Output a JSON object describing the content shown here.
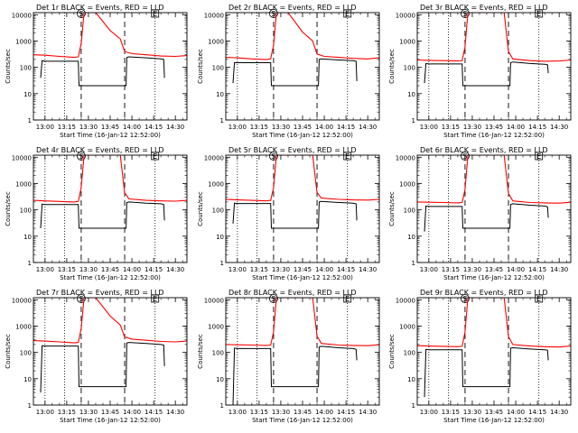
{
  "chart_data": {
    "type": "line",
    "layout": "3x3 grid",
    "shared": {
      "x_tick_labels": [
        "13:00",
        "13:15",
        "13:30",
        "13:45",
        "14:00",
        "14:15",
        "14:30"
      ],
      "x_ticks_minutes": [
        0,
        15,
        30,
        45,
        60,
        75,
        90
      ],
      "xlabel": "Start Time (16-Jan-12 12:52:00)",
      "ylabel": "Counts/sec",
      "y_tick_labels": [
        "1",
        "10",
        "100",
        "1000",
        "10000"
      ],
      "yscale": "log",
      "ylim": [
        1,
        12000
      ],
      "xlim_minutes": [
        -8,
        98
      ],
      "marker_S": "S",
      "marker_E": "E",
      "series_legend": "BLACK = Events, RED = LLD",
      "colors": {
        "events": "#000000",
        "lld": "#ff0000"
      }
    },
    "panels": [
      {
        "title": "Det 1r BLACK = Events, RED = LLD",
        "dotted_x": [
          0,
          13.5,
          76
        ],
        "dashed_x": [
          25,
          55
        ],
        "S_x": 25,
        "E_x": 76,
        "lld_x": [
          -8,
          0,
          10,
          20,
          23,
          25,
          27,
          35,
          45,
          52,
          55,
          60,
          70,
          80,
          90,
          98
        ],
        "lld_y": [
          300,
          290,
          260,
          240,
          250,
          800,
          12000,
          12000,
          2500,
          1200,
          400,
          330,
          300,
          270,
          260,
          280
        ],
        "events_x": [
          -3,
          -2,
          0,
          10,
          20,
          23,
          23.5,
          56,
          56.5,
          58,
          70,
          80,
          82,
          82.5
        ],
        "events_y": [
          40,
          180,
          170,
          170,
          170,
          170,
          20,
          20,
          240,
          250,
          230,
          210,
          200,
          40
        ]
      },
      {
        "title": "Det 2r BLACK = Events, RED = LLD",
        "dotted_x": [
          0,
          13.5,
          76
        ],
        "dashed_x": [
          25,
          55
        ],
        "S_x": 25,
        "E_x": 76,
        "lld_x": [
          -8,
          0,
          10,
          20,
          23,
          25,
          27,
          35,
          45,
          52,
          55,
          60,
          70,
          80,
          90,
          98
        ],
        "lld_y": [
          240,
          230,
          210,
          200,
          210,
          700,
          12000,
          12000,
          2200,
          1000,
          320,
          260,
          240,
          220,
          210,
          230
        ],
        "events_x": [
          -3,
          -2,
          0,
          10,
          20,
          23,
          23.5,
          56,
          56.5,
          58,
          70,
          80,
          82,
          82.5
        ],
        "events_y": [
          25,
          150,
          150,
          150,
          150,
          150,
          20,
          20,
          200,
          210,
          190,
          180,
          170,
          30
        ]
      },
      {
        "title": "Det 3r BLACK = Events, RED = LLD",
        "dotted_x": [
          0,
          13.5,
          76
        ],
        "dashed_x": [
          25,
          55
        ],
        "S_x": 25,
        "E_x": 76,
        "lld_x": [
          -8,
          0,
          10,
          20,
          23,
          25,
          27,
          45,
          52,
          55,
          58,
          70,
          80,
          90,
          98
        ],
        "lld_y": [
          190,
          185,
          180,
          175,
          180,
          600,
          12000,
          12000,
          12000,
          400,
          210,
          180,
          170,
          175,
          190
        ],
        "events_x": [
          -3,
          -2,
          0,
          10,
          20,
          23,
          23.5,
          56,
          56.5,
          58,
          70,
          80,
          82,
          82.5
        ],
        "events_y": [
          25,
          140,
          135,
          135,
          135,
          135,
          20,
          20,
          150,
          160,
          140,
          130,
          125,
          60
        ]
      },
      {
        "title": "Det 4r BLACK = Events, RED = LLD",
        "dotted_x": [
          0,
          13.5,
          76
        ],
        "dashed_x": [
          25,
          55
        ],
        "S_x": 25,
        "E_x": 76,
        "lld_x": [
          -8,
          0,
          10,
          20,
          23,
          25,
          27,
          45,
          52,
          55,
          58,
          70,
          80,
          90,
          98
        ],
        "lld_y": [
          230,
          220,
          210,
          200,
          210,
          700,
          12000,
          12000,
          12000,
          450,
          260,
          230,
          220,
          215,
          230
        ],
        "events_x": [
          -3,
          -2,
          0,
          10,
          20,
          23,
          23.5,
          56,
          56.5,
          58,
          70,
          80,
          82,
          82.5
        ],
        "events_y": [
          20,
          165,
          160,
          160,
          160,
          160,
          20,
          20,
          190,
          200,
          180,
          170,
          160,
          40
        ]
      },
      {
        "title": "Det 5r BLACK = Events, RED = LLD",
        "dotted_x": [
          0,
          13.5,
          76
        ],
        "dashed_x": [
          25,
          55
        ],
        "S_x": 25,
        "E_x": 76,
        "lld_x": [
          -8,
          0,
          10,
          20,
          23,
          25,
          27,
          45,
          52,
          55,
          58,
          70,
          80,
          90,
          98
        ],
        "lld_y": [
          250,
          240,
          230,
          220,
          230,
          700,
          12000,
          12000,
          12000,
          460,
          280,
          250,
          240,
          235,
          250
        ],
        "events_x": [
          -3,
          -2,
          0,
          10,
          20,
          23,
          23.5,
          56,
          56.5,
          58,
          70,
          80,
          82,
          82.5
        ],
        "events_y": [
          30,
          180,
          175,
          175,
          175,
          175,
          20,
          20,
          200,
          210,
          190,
          180,
          170,
          40
        ]
      },
      {
        "title": "Det 6r BLACK = Events, RED = LLD",
        "dotted_x": [
          0,
          13.5,
          76
        ],
        "dashed_x": [
          25,
          55
        ],
        "S_x": 25,
        "E_x": 76,
        "lld_x": [
          -8,
          0,
          10,
          20,
          23,
          25,
          27,
          45,
          52,
          55,
          58,
          70,
          80,
          90,
          98
        ],
        "lld_y": [
          200,
          195,
          190,
          185,
          190,
          600,
          12000,
          12000,
          12000,
          420,
          220,
          190,
          185,
          180,
          195
        ],
        "events_x": [
          -3,
          -2,
          0,
          10,
          20,
          23,
          23.5,
          56,
          56.5,
          58,
          70,
          80,
          82,
          82.5
        ],
        "events_y": [
          15,
          140,
          135,
          135,
          135,
          135,
          20,
          20,
          160,
          170,
          150,
          140,
          130,
          50
        ]
      },
      {
        "title": "Det 7r BLACK = Events, RED = LLD",
        "dotted_x": [
          0,
          13.5,
          76
        ],
        "dashed_x": [
          25,
          55
        ],
        "S_x": 25,
        "E_x": 76,
        "lld_x": [
          -8,
          0,
          10,
          20,
          23,
          25,
          27,
          35,
          45,
          52,
          55,
          60,
          70,
          80,
          90,
          98
        ],
        "lld_y": [
          280,
          270,
          250,
          230,
          240,
          800,
          12000,
          12000,
          2400,
          1100,
          380,
          320,
          290,
          260,
          250,
          270
        ],
        "events_x": [
          -3,
          -2,
          0,
          10,
          20,
          23,
          23.5,
          56,
          56.5,
          58,
          70,
          80,
          82,
          82.5
        ],
        "events_y": [
          3,
          180,
          175,
          175,
          175,
          175,
          5,
          5,
          230,
          240,
          220,
          200,
          190,
          30
        ]
      },
      {
        "title": "Det 8r BLACK = Events, RED = LLD",
        "dotted_x": [
          0,
          13.5,
          76
        ],
        "dashed_x": [
          25,
          55
        ],
        "S_x": 25,
        "E_x": 76,
        "lld_x": [
          -8,
          0,
          10,
          20,
          23,
          25,
          27,
          45,
          52,
          55,
          58,
          70,
          80,
          90,
          98
        ],
        "lld_y": [
          200,
          195,
          190,
          185,
          190,
          600,
          12000,
          12000,
          12000,
          420,
          220,
          190,
          185,
          180,
          195
        ],
        "events_x": [
          -3,
          -2,
          0,
          10,
          20,
          23,
          23.5,
          56,
          56.5,
          58,
          70,
          80,
          82,
          82.5
        ],
        "events_y": [
          1,
          145,
          140,
          140,
          140,
          140,
          5,
          5,
          160,
          170,
          150,
          140,
          130,
          50
        ]
      },
      {
        "title": "Det 9r BLACK = Events, RED = LLD",
        "dotted_x": [
          0,
          13.5,
          76
        ],
        "dashed_x": [
          25,
          55
        ],
        "S_x": 25,
        "E_x": 76,
        "lld_x": [
          -8,
          0,
          10,
          20,
          23,
          25,
          27,
          45,
          52,
          55,
          58,
          70,
          80,
          90,
          98
        ],
        "lld_y": [
          180,
          175,
          170,
          165,
          170,
          600,
          12000,
          12000,
          12000,
          400,
          200,
          175,
          165,
          160,
          175
        ],
        "events_x": [
          -3,
          -2,
          0,
          10,
          20,
          23,
          23.5,
          56,
          56.5,
          58,
          70,
          80,
          82,
          82.5
        ],
        "events_y": [
          2,
          130,
          125,
          125,
          125,
          125,
          5,
          5,
          145,
          150,
          135,
          125,
          120,
          50
        ]
      }
    ]
  }
}
